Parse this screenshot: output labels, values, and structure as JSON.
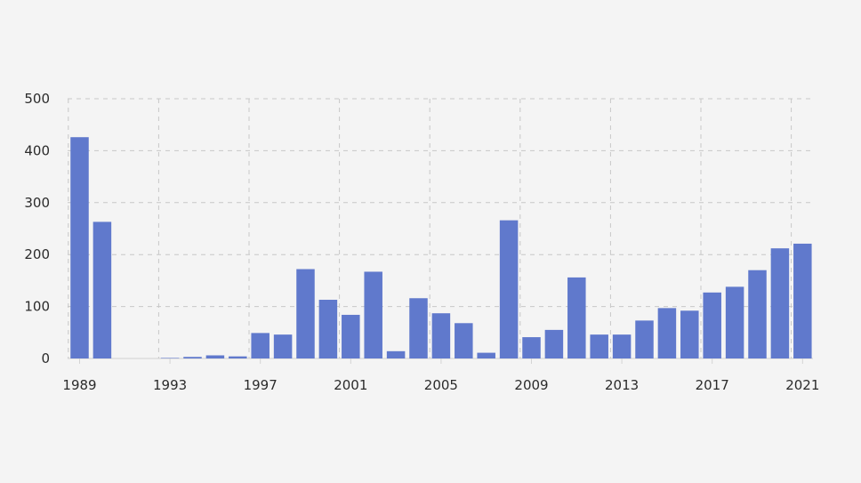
{
  "chart_data": {
    "type": "bar",
    "title": "",
    "xlabel": "",
    "ylabel": "",
    "categories": [
      "1989",
      "1990",
      "1991",
      "1992",
      "1993",
      "1994",
      "1995",
      "1996",
      "1997",
      "1998",
      "1999",
      "2000",
      "2001",
      "2002",
      "2003",
      "2004",
      "2005",
      "2006",
      "2007",
      "2008",
      "2009",
      "2010",
      "2011",
      "2012",
      "2013",
      "2014",
      "2015",
      "2016",
      "2017",
      "2018",
      "2019",
      "2020",
      "2021"
    ],
    "values": [
      426,
      263,
      0,
      0,
      1,
      3,
      6,
      4,
      49,
      46,
      172,
      113,
      84,
      167,
      14,
      116,
      87,
      68,
      11,
      266,
      41,
      55,
      156,
      46,
      46,
      73,
      97,
      92,
      127,
      138,
      170,
      212,
      221
    ],
    "x_tick_labels": [
      "1989",
      "1993",
      "1997",
      "2001",
      "2005",
      "2009",
      "2013",
      "2017",
      "2021"
    ],
    "y_tick_labels": [
      "0",
      "100",
      "200",
      "300",
      "400",
      "500"
    ],
    "ylim": [
      0,
      500
    ],
    "grid": true,
    "bar_color": "#6079cc"
  }
}
